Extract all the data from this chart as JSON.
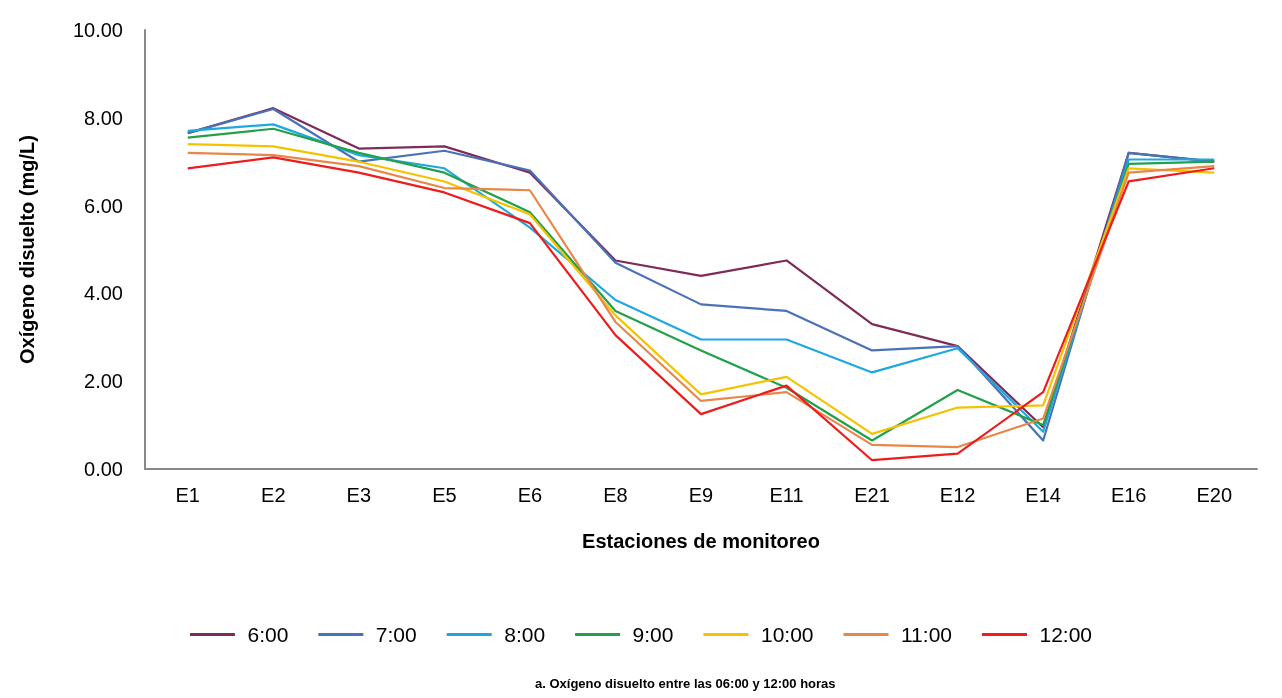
{
  "chart_data": {
    "type": "line",
    "xlabel": "Estaciones de monitoreo",
    "ylabel": "Oxígeno disuelto (mg/L)",
    "categories": [
      "E1",
      "E2",
      "E3",
      "E5",
      "E6",
      "E8",
      "E9",
      "E11",
      "E21",
      "E12",
      "E14",
      "E16",
      "E20"
    ],
    "ylim": [
      0,
      10
    ],
    "yticks": [
      {
        "value": 0,
        "label": "0.00"
      },
      {
        "value": 2,
        "label": "2.00"
      },
      {
        "value": 4,
        "label": "4.00"
      },
      {
        "value": 6,
        "label": "6.00"
      },
      {
        "value": 8,
        "label": "8.00"
      },
      {
        "value": 10,
        "label": "10.00"
      }
    ],
    "grid": false,
    "legend": "bottom",
    "marker": "none",
    "line_style": "solid",
    "annotations": [
      "a. Oxígeno disuelto entre las 06:00 y 12:00 horas"
    ],
    "series": [
      {
        "name": "6:00",
        "color": "#7e2b5a",
        "values": [
          7.65,
          8.22,
          7.3,
          7.35,
          6.75,
          4.75,
          4.4,
          4.75,
          3.3,
          2.8,
          0.95,
          7.2,
          7.0
        ]
      },
      {
        "name": "7:00",
        "color": "#4a72b8",
        "values": [
          7.65,
          8.2,
          7.0,
          7.25,
          6.8,
          4.7,
          3.75,
          3.6,
          2.7,
          2.8,
          0.65,
          7.2,
          7.0
        ]
      },
      {
        "name": "8:00",
        "color": "#1ea8e0",
        "values": [
          7.7,
          7.85,
          7.15,
          6.85,
          5.5,
          3.85,
          2.95,
          2.95,
          2.2,
          2.75,
          0.85,
          7.05,
          7.05
        ]
      },
      {
        "name": "9:00",
        "color": "#22a04a",
        "values": [
          7.55,
          7.75,
          7.2,
          6.75,
          5.85,
          3.6,
          2.7,
          1.85,
          0.65,
          1.8,
          1.0,
          6.95,
          7.0
        ]
      },
      {
        "name": "10:00",
        "color": "#f5c200",
        "values": [
          7.4,
          7.35,
          7.0,
          6.55,
          5.8,
          3.5,
          1.7,
          2.1,
          0.8,
          1.4,
          1.45,
          6.85,
          6.75
        ]
      },
      {
        "name": "11:00",
        "color": "#e8874a",
        "values": [
          7.2,
          7.15,
          6.9,
          6.4,
          6.35,
          3.35,
          1.55,
          1.75,
          0.55,
          0.5,
          1.15,
          6.75,
          6.9
        ]
      },
      {
        "name": "12:00",
        "color": "#ee1c1c",
        "values": [
          6.85,
          7.1,
          6.75,
          6.3,
          5.6,
          3.05,
          1.25,
          1.9,
          0.2,
          0.35,
          1.75,
          6.55,
          6.85
        ]
      }
    ]
  }
}
